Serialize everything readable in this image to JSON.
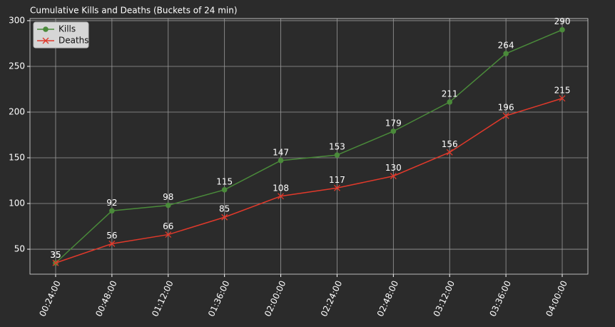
{
  "chart_data": {
    "type": "line",
    "title": "Cumulative Kills and Deaths (Buckets of 24 min)",
    "categories": [
      "00:24:00",
      "00:48:00",
      "01:12:00",
      "01:36:00",
      "02:00:00",
      "02:24:00",
      "02:48:00",
      "03:12:00",
      "03:36:00",
      "04:00:00"
    ],
    "series": [
      {
        "name": "Kills",
        "color": "#4a8a3a",
        "marker": "o",
        "values": [
          35,
          92,
          98,
          115,
          147,
          153,
          179,
          211,
          264,
          290
        ]
      },
      {
        "name": "Deaths",
        "color": "#e0392b",
        "marker": "x",
        "values": [
          35,
          56,
          66,
          85,
          108,
          117,
          130,
          156,
          196,
          215
        ]
      }
    ],
    "ylim": [
      22.7,
      302.3
    ],
    "yticks": [
      50,
      100,
      150,
      200,
      250,
      300
    ],
    "grid": true,
    "legend": "upper left"
  }
}
